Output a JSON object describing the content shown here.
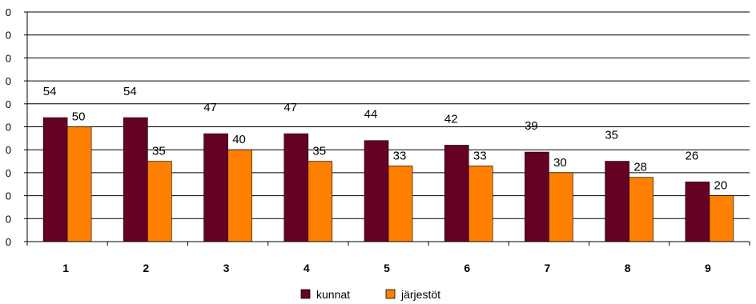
{
  "chart_data": {
    "type": "bar",
    "categories": [
      "1",
      "2",
      "3",
      "4",
      "5",
      "6",
      "7",
      "8",
      "9"
    ],
    "series": [
      {
        "name": "kunnat",
        "color": "#660024",
        "values": [
          54,
          54,
          47,
          47,
          44,
          42,
          39,
          35,
          26
        ],
        "value_labels": [
          "54",
          "54",
          "47",
          "47",
          "44",
          "42",
          "39",
          "35",
          "26"
        ]
      },
      {
        "name": "järjestöt",
        "color": "#ff8000",
        "values": [
          50,
          35,
          40,
          35,
          33,
          33,
          30,
          28,
          20
        ],
        "value_labels": [
          "50",
          "35",
          "40",
          "35",
          "33",
          "33",
          "30",
          "28",
          "20"
        ]
      }
    ],
    "y_tick_labels": [
      "0",
      "0",
      "0",
      "0",
      "0",
      "0",
      "0",
      "0",
      "0",
      "0",
      "0"
    ],
    "ylim": [
      0,
      100
    ],
    "grid": true,
    "legend_position": "bottom-center"
  }
}
